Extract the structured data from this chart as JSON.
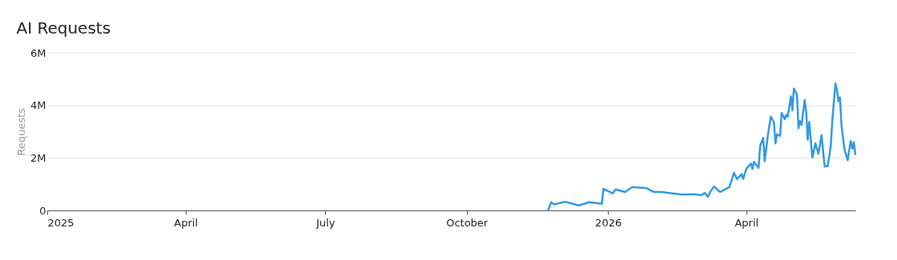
{
  "chart_data": {
    "type": "line",
    "title": "AI Requests",
    "ylabel": "Requests",
    "x": [
      "2025-11-23",
      "2025-11-25",
      "2025-11-27",
      "2025-12-04",
      "2025-12-13",
      "2025-12-20",
      "2025-12-28",
      "2025-12-29",
      "2026-01-04",
      "2026-01-06",
      "2026-01-12",
      "2026-01-17",
      "2026-01-21",
      "2026-01-26",
      "2026-01-31",
      "2026-02-05",
      "2026-02-12",
      "2026-02-19",
      "2026-02-26",
      "2026-03-03",
      "2026-03-05",
      "2026-03-07",
      "2026-03-09",
      "2026-03-11",
      "2026-03-15",
      "2026-03-21",
      "2026-03-24",
      "2026-03-26",
      "2026-03-29",
      "2026-03-30",
      "2026-04-01",
      "2026-04-04",
      "2026-04-05",
      "2026-04-06",
      "2026-04-09",
      "2026-04-10",
      "2026-04-12",
      "2026-04-13",
      "2026-04-15",
      "2026-04-17",
      "2026-04-19",
      "2026-04-20",
      "2026-04-21",
      "2026-04-23",
      "2026-04-24",
      "2026-04-26",
      "2026-04-27",
      "2026-04-28",
      "2026-04-30",
      "2026-05-01",
      "2026-05-02",
      "2026-05-04",
      "2026-05-05",
      "2026-05-06",
      "2026-05-07",
      "2026-05-09",
      "2026-05-10",
      "2026-05-11",
      "2026-05-12",
      "2026-05-14",
      "2026-05-16",
      "2026-05-18",
      "2026-05-20",
      "2026-05-22",
      "2026-05-24",
      "2026-05-26",
      "2026-05-27",
      "2026-05-29",
      "2026-05-30",
      "2026-05-31",
      "2026-06-01",
      "2026-06-02",
      "2026-06-04",
      "2026-06-06",
      "2026-06-08",
      "2026-06-09",
      "2026-06-10",
      "2026-06-11"
    ],
    "series": [
      {
        "color": "#3399e6",
        "values": [
          0,
          310000,
          230000,
          330000,
          190000,
          310000,
          250000,
          820000,
          650000,
          800000,
          700000,
          890000,
          870000,
          850000,
          700000,
          700000,
          650000,
          600000,
          620000,
          580000,
          670000,
          520000,
          750000,
          910000,
          700000,
          890000,
          1430000,
          1190000,
          1380000,
          1200000,
          1580000,
          1790000,
          1580000,
          1850000,
          1620000,
          2450000,
          2760000,
          1870000,
          2840000,
          3570000,
          3350000,
          2550000,
          2890000,
          2840000,
          3710000,
          3470000,
          3640000,
          3560000,
          4340000,
          3810000,
          4640000,
          4400000,
          3130000,
          3400000,
          3250000,
          4200000,
          3760000,
          2690000,
          3370000,
          2010000,
          2550000,
          2160000,
          2860000,
          1670000,
          1690000,
          2450000,
          3420000,
          4830000,
          4600000,
          4150000,
          4300000,
          3220000,
          2300000,
          1910000,
          2640000,
          2350000,
          2600000,
          2110000
        ]
      }
    ],
    "xlim": [
      "2025-01-01",
      "2026-06-11"
    ],
    "xticks": [
      {
        "value": "2025-01-01",
        "label": "2025"
      },
      {
        "value": "2025-04-01",
        "label": "April"
      },
      {
        "value": "2025-07-01",
        "label": "July"
      },
      {
        "value": "2025-10-01",
        "label": "October"
      },
      {
        "value": "2026-01-01",
        "label": "2026"
      },
      {
        "value": "2026-04-01",
        "label": "April"
      }
    ],
    "ylim": [
      0,
      6000000
    ],
    "yticks": [
      0,
      {
        "value": 2000000,
        "label": "2M"
      },
      {
        "value": 4000000,
        "label": "4M"
      },
      {
        "value": 6000000,
        "label": "6M"
      }
    ],
    "grid": "y",
    "legend": false,
    "marker": "none",
    "line_style": "solid"
  }
}
